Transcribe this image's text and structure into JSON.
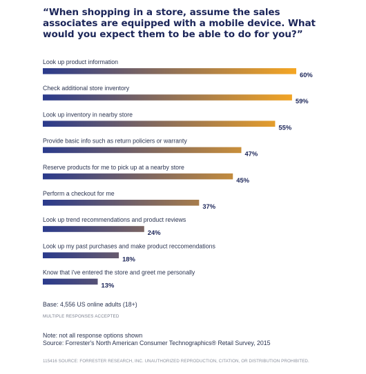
{
  "chart_data": {
    "type": "bar",
    "orientation": "horizontal",
    "title": "“When shopping in a store, assume the sales associates are equipped with a mobile device. What would you expect them to be able to do for you?”",
    "categories": [
      "Look up product information",
      "Check additional store inventory",
      "Look up inventory in nearby store",
      "Provide basic info such as return policiers or warranty",
      "Reserve products for me to pick up at a nearby store",
      "Perform a checkout for me",
      "Look up trend recommendations and product reviews",
      "Look up my past purchases and make product reccomendations",
      "Know that i've entered the store and greet me personally"
    ],
    "values": [
      60,
      59,
      55,
      47,
      45,
      37,
      24,
      18,
      13
    ],
    "value_labels": [
      "60%",
      "59%",
      "55%",
      "47%",
      "45%",
      "37%",
      "24%",
      "18%",
      "13%"
    ],
    "value_unit": "%",
    "xlim": [
      0,
      60
    ],
    "grid": false,
    "legend": "none",
    "colors": {
      "gradient_start": "#2a3a8c",
      "gradient_end": "#f5a623",
      "title": "#1c2659"
    }
  },
  "base_text": "Base: 4,556 US online adults (18+)",
  "multiple_responses": "MULTIPLE RESPONSES ACCEPTED",
  "note": "Note: not all response options shown",
  "source": "Source: Forrester's North American Consumer Technographics® Retail Survey, 2015",
  "footer": "115416  SOURCE: FORRESTER RESEARCH, INC. UNAUTHORIZED REPRODUCTION, CITATION, OR DISTRIBUTION PROHIBITED."
}
